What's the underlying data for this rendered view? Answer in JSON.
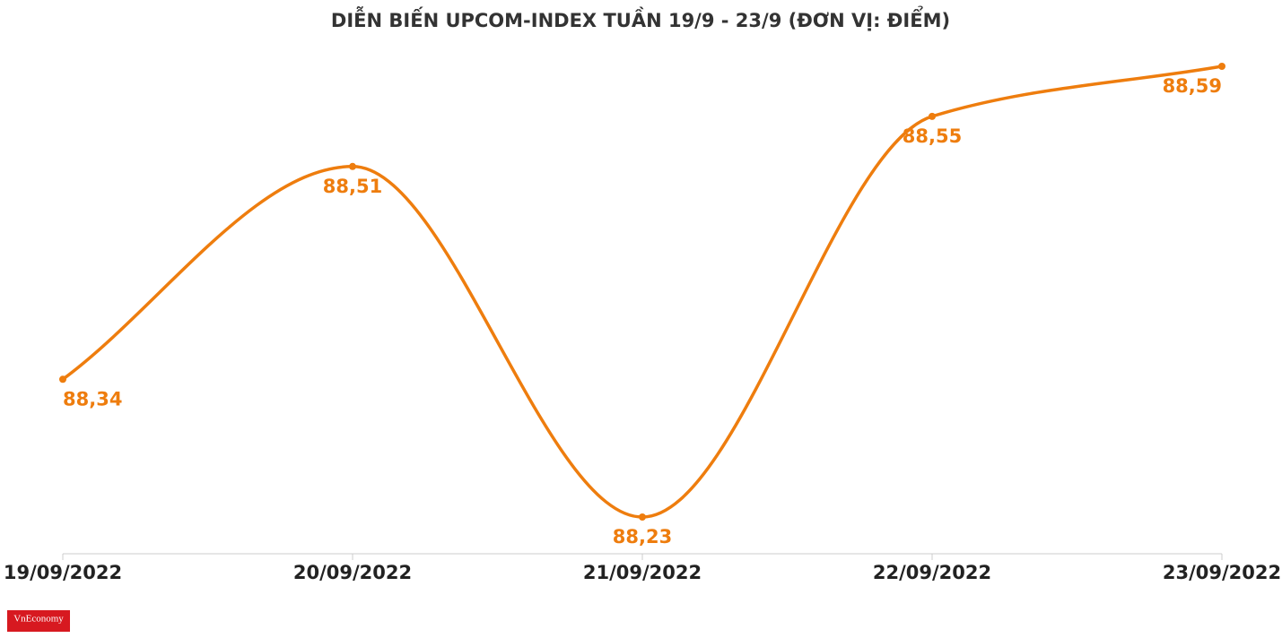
{
  "chart_data": {
    "type": "line",
    "title": "DIỄN BIẾN UPCOM-INDEX TUẦN 19/9 - 23/9 (ĐƠN VỊ: ĐIỂM)",
    "categories": [
      "19/09/2022",
      "20/09/2022",
      "21/09/2022",
      "22/09/2022",
      "23/09/2022"
    ],
    "series": [
      {
        "name": "UPCOM-Index",
        "color": "#ee7d0e",
        "values": [
          88.34,
          88.51,
          88.23,
          88.55,
          88.59
        ],
        "value_labels": [
          "88,34",
          "88,51",
          "88,23",
          "88,55",
          "88,59"
        ]
      }
    ],
    "grid": false
  },
  "logo": "VnEconomy"
}
